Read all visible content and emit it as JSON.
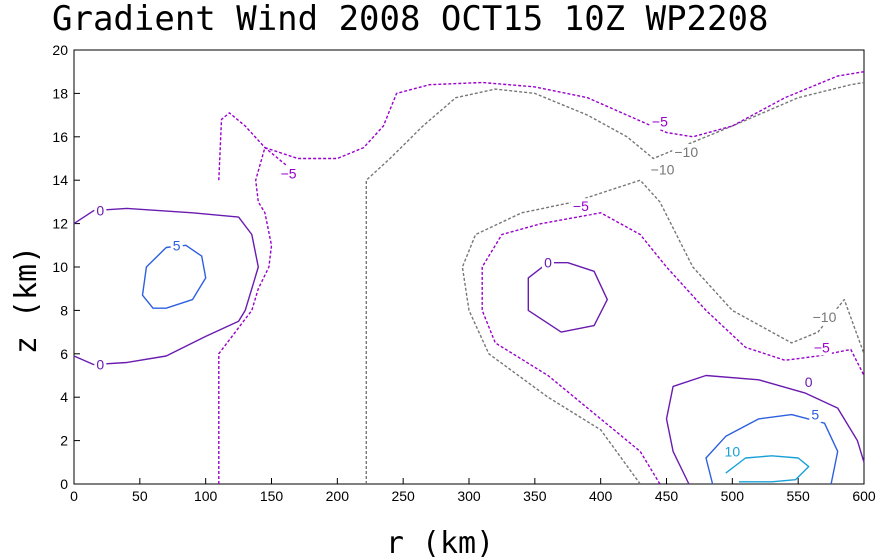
{
  "chart_data": {
    "type": "contour",
    "title": "Gradient Wind 2008 OCT15 10Z  WP2208",
    "xlabel": "r (km)",
    "ylabel": "z (km)",
    "xlim": [
      0,
      600
    ],
    "ylim": [
      0,
      20
    ],
    "x_ticks": [
      0,
      50,
      100,
      150,
      200,
      250,
      300,
      350,
      400,
      450,
      500,
      550,
      600
    ],
    "y_ticks": [
      0,
      2,
      4,
      6,
      8,
      10,
      12,
      14,
      16,
      18,
      20
    ],
    "grid": false,
    "colors": {
      "-10": "#777777",
      "-5": "#9900cc",
      "0": "#6a1bb0",
      "5": "#2d5fe0",
      "10": "#1aa0d8"
    },
    "contours": [
      {
        "level": -10,
        "dashed": true,
        "points": [
          [
            222,
            0
          ],
          [
            222,
            14
          ],
          [
            240,
            15
          ],
          [
            265,
            16.5
          ],
          [
            290,
            17.8
          ],
          [
            320,
            18.2
          ],
          [
            350,
            18
          ],
          [
            390,
            17
          ],
          [
            420,
            16
          ],
          [
            440,
            15
          ],
          [
            460,
            15.5
          ],
          [
            500,
            16.5
          ],
          [
            550,
            17.8
          ],
          [
            590,
            18.4
          ],
          [
            600,
            18.5
          ]
        ]
      },
      {
        "level": -10,
        "dashed": true,
        "points": [
          [
            430,
            0
          ],
          [
            400,
            2.5
          ],
          [
            360,
            4
          ],
          [
            315,
            6
          ],
          [
            300,
            8
          ],
          [
            295,
            10
          ],
          [
            305,
            11.5
          ],
          [
            340,
            12.5
          ],
          [
            380,
            13
          ],
          [
            430,
            14
          ],
          [
            445,
            13
          ],
          [
            470,
            10
          ],
          [
            500,
            8
          ],
          [
            530,
            7
          ],
          [
            545,
            6.5
          ],
          [
            565,
            7
          ],
          [
            585,
            8.5
          ],
          [
            600,
            6
          ]
        ]
      },
      {
        "level": -5,
        "dashed": true,
        "points": [
          [
            110,
            0
          ],
          [
            110,
            6
          ],
          [
            135,
            8
          ],
          [
            140,
            9
          ],
          [
            148,
            10
          ],
          [
            150,
            11
          ],
          [
            145,
            12.5
          ],
          [
            140,
            13
          ],
          [
            138,
            14
          ],
          [
            145,
            15.5
          ],
          [
            170,
            15
          ],
          [
            200,
            15
          ],
          [
            220,
            15.5
          ],
          [
            235,
            16.5
          ],
          [
            245,
            18
          ],
          [
            270,
            18.4
          ],
          [
            310,
            18.5
          ],
          [
            350,
            18.3
          ],
          [
            390,
            17.8
          ],
          [
            420,
            17
          ],
          [
            450,
            16.2
          ],
          [
            470,
            16
          ],
          [
            500,
            16.5
          ],
          [
            540,
            17.8
          ],
          [
            580,
            18.8
          ],
          [
            600,
            19
          ]
        ]
      },
      {
        "level": -5,
        "dashed": true,
        "points": [
          [
            110,
            14
          ],
          [
            112,
            16.8
          ],
          [
            118,
            17.1
          ],
          [
            130,
            16.5
          ],
          [
            145,
            15.5
          ],
          [
            165,
            14.5
          ]
        ]
      },
      {
        "level": -5,
        "dashed": true,
        "points": [
          [
            445,
            0
          ],
          [
            430,
            1.5
          ],
          [
            400,
            3
          ],
          [
            360,
            5
          ],
          [
            320,
            6.5
          ],
          [
            310,
            8
          ],
          [
            310,
            10
          ],
          [
            325,
            11.5
          ],
          [
            355,
            12
          ],
          [
            400,
            12.5
          ],
          [
            430,
            11.5
          ],
          [
            450,
            10
          ],
          [
            480,
            8
          ],
          [
            510,
            6.3
          ],
          [
            540,
            5.7
          ],
          [
            565,
            5.9
          ],
          [
            590,
            6.2
          ],
          [
            600,
            5
          ]
        ]
      },
      {
        "level": 0,
        "dashed": false,
        "points": [
          [
            0,
            5.9
          ],
          [
            15,
            5.5
          ],
          [
            40,
            5.6
          ],
          [
            70,
            5.9
          ],
          [
            100,
            6.8
          ],
          [
            125,
            7.5
          ],
          [
            130,
            8
          ],
          [
            135,
            9
          ],
          [
            140,
            10
          ],
          [
            135,
            11.5
          ],
          [
            125,
            12.3
          ],
          [
            90,
            12.5
          ],
          [
            40,
            12.7
          ],
          [
            15,
            12.6
          ],
          [
            0,
            12
          ]
        ]
      },
      {
        "level": 0,
        "dashed": false,
        "points": [
          [
            375,
            10.2
          ],
          [
            395,
            9.8
          ],
          [
            405,
            8.5
          ],
          [
            395,
            7.3
          ],
          [
            370,
            7
          ],
          [
            345,
            8
          ],
          [
            345,
            9.5
          ],
          [
            360,
            10.2
          ],
          [
            375,
            10.2
          ]
        ]
      },
      {
        "level": 0,
        "dashed": false,
        "points": [
          [
            467,
            0
          ],
          [
            455,
            1.5
          ],
          [
            450,
            3
          ],
          [
            455,
            4.5
          ],
          [
            480,
            5
          ],
          [
            520,
            4.8
          ],
          [
            555,
            4.2
          ],
          [
            580,
            3.5
          ],
          [
            595,
            2
          ],
          [
            600,
            1
          ]
        ]
      },
      {
        "level": 5,
        "dashed": false,
        "points": [
          [
            70,
            8.1
          ],
          [
            90,
            8.5
          ],
          [
            100,
            9.5
          ],
          [
            97,
            10.5
          ],
          [
            85,
            11
          ],
          [
            70,
            10.9
          ],
          [
            55,
            10
          ],
          [
            52,
            8.7
          ],
          [
            60,
            8.1
          ],
          [
            70,
            8.1
          ]
        ]
      },
      {
        "level": 5,
        "dashed": false,
        "points": [
          [
            485,
            0
          ],
          [
            480,
            1.2
          ],
          [
            495,
            2.2
          ],
          [
            520,
            3
          ],
          [
            545,
            3.2
          ],
          [
            570,
            2.8
          ],
          [
            580,
            1.5
          ],
          [
            575,
            0
          ]
        ]
      },
      {
        "level": 10,
        "dashed": false,
        "points": [
          [
            495,
            0.5
          ],
          [
            510,
            1.2
          ],
          [
            530,
            1.3
          ],
          [
            550,
            1.2
          ],
          [
            558,
            0.8
          ],
          [
            548,
            0.2
          ],
          [
            530,
            0.1
          ],
          [
            505,
            0.1
          ]
        ]
      }
    ],
    "contour_labels": [
      {
        "text": "0",
        "r": 20,
        "z": 12.6,
        "level": 0
      },
      {
        "text": "0",
        "r": 20,
        "z": 5.5,
        "level": 0
      },
      {
        "text": "5",
        "r": 78,
        "z": 11,
        "level": 5
      },
      {
        "text": "−5",
        "r": 163,
        "z": 14.3,
        "level": -5
      },
      {
        "text": "−5",
        "r": 385,
        "z": 12.8,
        "level": -5
      },
      {
        "text": "−5",
        "r": 445,
        "z": 16.7,
        "level": -5
      },
      {
        "text": "−10",
        "r": 447,
        "z": 14.5,
        "level": -10
      },
      {
        "text": "−10",
        "r": 465,
        "z": 15.3,
        "level": -10
      },
      {
        "text": "0",
        "r": 360,
        "z": 10.2,
        "level": 0
      },
      {
        "text": "−10",
        "r": 570,
        "z": 7.7,
        "level": -10
      },
      {
        "text": "−5",
        "r": 568,
        "z": 6.3,
        "level": -5
      },
      {
        "text": "0",
        "r": 558,
        "z": 4.7,
        "level": 0
      },
      {
        "text": "5",
        "r": 563,
        "z": 3.2,
        "level": 5
      },
      {
        "text": "10",
        "r": 500,
        "z": 1.5,
        "level": 10
      }
    ]
  }
}
